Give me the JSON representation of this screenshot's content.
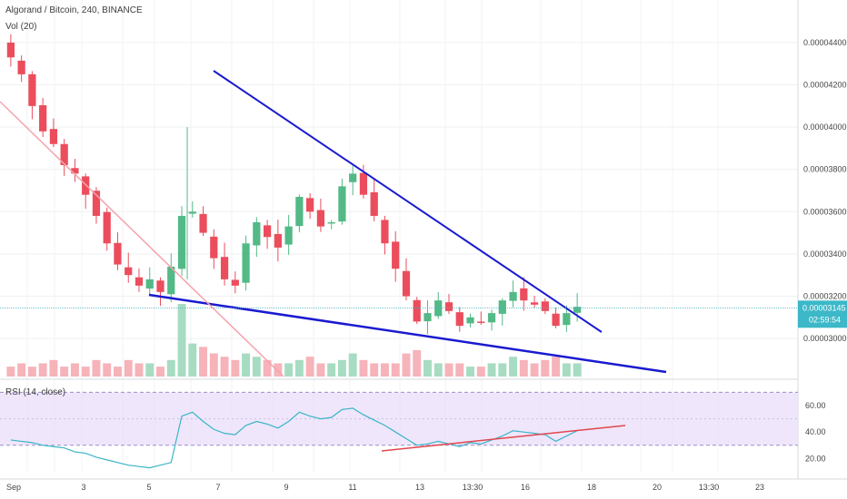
{
  "chart_data": [
    {
      "type": "candlestick",
      "title": "Algorand / Bitcoin, 240, BINANCE",
      "indicator": "Vol (20)",
      "price_axis": {
        "ticks": [
          "0.00004400",
          "0.00004200",
          "0.00004000",
          "0.00003800",
          "0.00003600",
          "0.00003400",
          "0.00003200",
          "0.00003000"
        ],
        "range": [
          2.82e-05,
          4.55e-05
        ]
      },
      "current_price": "0.00003145",
      "countdown": "02:59:54",
      "time_axis": {
        "ticks": [
          "Sep",
          "3",
          "5",
          "7",
          "9",
          "11",
          "13",
          "13:30",
          "16",
          "18",
          "20",
          "13:30",
          "23"
        ]
      },
      "close_path": [
        4.33e-05,
        4.25e-05,
        4.1e-05,
        3.98e-05,
        3.92e-05,
        3.82e-05,
        3.78e-05,
        3.68e-05,
        3.58e-05,
        3.45e-05,
        3.35e-05,
        3.3e-05,
        3.25e-05,
        3.28e-05,
        3.22e-05,
        3.34e-05,
        3.58e-05,
        3.6e-05,
        3.5e-05,
        3.38e-05,
        3.28e-05,
        3.25e-05,
        3.45e-05,
        3.55e-05,
        3.48e-05,
        3.43e-05,
        3.53e-05,
        3.67e-05,
        3.6e-05,
        3.53e-05,
        3.55e-05,
        3.72e-05,
        3.78e-05,
        3.68e-05,
        3.58e-05,
        3.45e-05,
        3.33e-05,
        3.2e-05,
        3.08e-05,
        3.12e-05,
        3.18e-05,
        3.13e-05,
        3.06e-05,
        3.1e-05,
        3.08e-05,
        3.12e-05,
        3.18e-05,
        3.22e-05,
        3.18e-05,
        3.16e-05,
        3.13e-05,
        3.06e-05,
        3.12e-05,
        3.15e-05
      ],
      "volume": [
        3,
        4,
        3,
        4,
        5,
        3,
        4,
        3,
        5,
        4,
        3,
        5,
        4,
        4,
        3,
        5,
        22,
        10,
        9,
        7,
        6,
        5,
        7,
        6,
        5,
        4,
        4,
        5,
        6,
        4,
        4,
        5,
        7,
        5,
        4,
        4,
        4,
        7,
        8,
        5,
        4,
        4,
        4,
        3,
        3,
        4,
        4,
        6,
        5,
        4,
        5,
        6,
        4,
        4
      ],
      "trendlines": [
        {
          "name": "falling resistance",
          "from": [
            "start",
            4.23e-05
          ],
          "to": [
            "end",
            3.06e-05
          ]
        },
        {
          "name": "falling support",
          "from": [
            "start",
            3.22e-05
          ],
          "to": [
            "end",
            2.95e-05
          ]
        }
      ]
    },
    {
      "type": "line",
      "title": "RSI (14, close)",
      "ylim": [
        10,
        73
      ],
      "yticks": [
        "60.00",
        "40.00",
        "20.00"
      ],
      "band": [
        30,
        70
      ],
      "values": [
        34,
        33,
        32,
        30,
        29,
        28,
        25,
        24,
        21,
        19,
        17,
        15,
        14,
        13,
        15,
        17,
        52,
        55,
        48,
        42,
        39,
        38,
        45,
        48,
        46,
        43,
        48,
        55,
        52,
        50,
        51,
        57,
        58,
        53,
        49,
        45,
        40,
        35,
        30,
        31,
        33,
        31,
        29,
        32,
        31,
        34,
        37,
        41,
        40,
        39,
        38,
        33,
        37,
        41
      ],
      "trendline": {
        "from": [
          4.15e-05,
          30
        ],
        "to": [
          6.85e-05,
          42
        ]
      }
    }
  ]
}
